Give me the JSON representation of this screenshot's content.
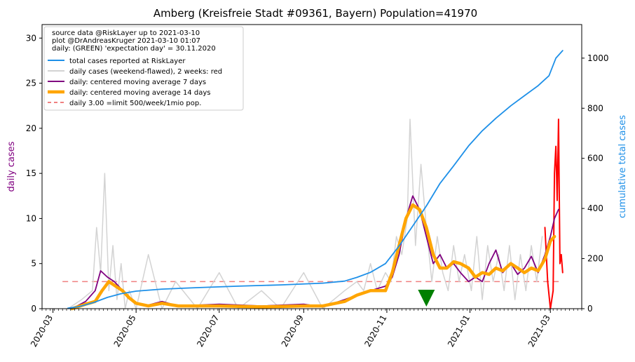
{
  "chart_data": {
    "type": "line",
    "title": "Amberg (Kreisfreie Stadt #09361, Bayern) Population=41970",
    "ylabel_left": "daily cases",
    "ylabel_right": "cumulative total cases",
    "xlim": [
      "2020-02-22",
      "2021-03-24"
    ],
    "ylim_left": [
      0,
      31.5
    ],
    "ylim_right": [
      0,
      1134
    ],
    "yticks_left": [
      0,
      5,
      10,
      15,
      20,
      25,
      30
    ],
    "yticks_right": [
      0,
      200,
      400,
      600,
      800,
      1000
    ],
    "xticks": [
      {
        "date": "2020-03-01",
        "label": "2020-03"
      },
      {
        "date": "2020-05-01",
        "label": "2020-05"
      },
      {
        "date": "2020-07-01",
        "label": "2020-07"
      },
      {
        "date": "2020-09-01",
        "label": "2020-09"
      },
      {
        "date": "2020-11-01",
        "label": "2020-11"
      },
      {
        "date": "2021-01-01",
        "label": "2021-01"
      },
      {
        "date": "2021-03-01",
        "label": "2021-03"
      }
    ],
    "colors": {
      "total": "#1e90e8",
      "daily": "#d3d3d3",
      "daily_recent": "#ff0000",
      "ma7": "#800080",
      "ma14": "#ffa500",
      "limit": "#f08080",
      "expectation_marker": "#008000",
      "left_label": "#800080",
      "right_label": "#1e90e8"
    },
    "legend": {
      "placement": "top-left",
      "header_lines": [
        "source data @RiskLayer up to 2021-03-10",
        "plot @DrAndreasKruger 2021-03-10 01:07",
        "daily: (GREEN) 'expectation day' = 30.11.2020"
      ],
      "entries": [
        {
          "key": "total",
          "label": "total cases reported at RiskLayer"
        },
        {
          "key": "daily",
          "label": "daily cases (weekend-flawed), 2 weeks: red"
        },
        {
          "key": "ma7",
          "label": "daily: centered moving average 7 days"
        },
        {
          "key": "ma14",
          "label": "daily: centered moving average 14 days"
        },
        {
          "key": "limit",
          "label": "daily 3.00 =limit 500/week/1mio pop."
        }
      ]
    },
    "limit_line": {
      "value": 3.0,
      "x_start": "2020-03-08",
      "x_end": "2021-03-10"
    },
    "expectation_day": "2020-11-30",
    "series": {
      "total": {
        "x": [
          "2020-03-12",
          "2020-03-20",
          "2020-03-31",
          "2020-04-10",
          "2020-04-20",
          "2020-05-01",
          "2020-05-20",
          "2020-06-15",
          "2020-07-15",
          "2020-08-15",
          "2020-09-15",
          "2020-10-01",
          "2020-10-10",
          "2020-10-20",
          "2020-10-31",
          "2020-11-10",
          "2020-11-20",
          "2020-11-30",
          "2020-12-10",
          "2020-12-20",
          "2020-12-31",
          "2021-01-10",
          "2021-01-20",
          "2021-01-31",
          "2021-02-10",
          "2021-02-20",
          "2021-02-28",
          "2021-03-05",
          "2021-03-10"
        ],
        "y": [
          2,
          8,
          25,
          45,
          60,
          70,
          78,
          84,
          90,
          95,
          102,
          110,
          125,
          145,
          180,
          250,
          330,
          410,
          500,
          570,
          650,
          710,
          760,
          810,
          850,
          890,
          930,
          1000,
          1030
        ]
      },
      "daily": {
        "x": [
          "2020-03-12",
          "2020-03-22",
          "2020-03-30",
          "2020-04-02",
          "2020-04-05",
          "2020-04-08",
          "2020-04-11",
          "2020-04-14",
          "2020-04-17",
          "2020-04-20",
          "2020-04-23",
          "2020-04-26",
          "2020-05-01",
          "2020-05-10",
          "2020-05-20",
          "2020-05-30",
          "2020-06-15",
          "2020-07-01",
          "2020-07-15",
          "2020-08-01",
          "2020-08-15",
          "2020-09-01",
          "2020-09-15",
          "2020-10-01",
          "2020-10-10",
          "2020-10-15",
          "2020-10-20",
          "2020-10-25",
          "2020-10-31",
          "2020-11-04",
          "2020-11-08",
          "2020-11-12",
          "2020-11-16",
          "2020-11-18",
          "2020-11-22",
          "2020-11-26",
          "2020-11-30",
          "2020-12-04",
          "2020-12-08",
          "2020-12-12",
          "2020-12-16",
          "2020-12-20",
          "2020-12-24",
          "2020-12-28",
          "2021-01-02",
          "2021-01-06",
          "2021-01-10",
          "2021-01-14",
          "2021-01-18",
          "2021-01-22",
          "2021-01-26",
          "2021-01-30",
          "2021-02-03",
          "2021-02-07",
          "2021-02-11",
          "2021-02-15",
          "2021-02-19",
          "2021-02-23"
        ],
        "y": [
          0,
          1,
          2,
          9,
          4,
          15,
          2,
          7,
          1,
          5,
          0,
          2,
          0,
          6,
          0,
          3,
          0,
          4,
          0,
          2,
          0,
          4,
          0,
          2,
          3,
          2,
          5,
          2,
          4,
          3,
          8,
          6,
          10,
          21,
          7,
          16,
          9,
          3,
          8,
          4,
          2,
          7,
          3,
          6,
          2,
          8,
          1,
          7,
          3,
          6,
          2,
          7,
          1,
          6,
          2,
          7,
          3,
          8
        ]
      },
      "daily_recent": {
        "x": [
          "2021-02-25",
          "2021-02-27",
          "2021-03-01",
          "2021-03-03",
          "2021-03-04",
          "2021-03-05",
          "2021-03-06",
          "2021-03-07",
          "2021-03-08",
          "2021-03-09",
          "2021-03-10"
        ],
        "y": [
          9,
          3,
          0,
          2,
          15,
          18,
          12,
          21,
          5,
          6,
          4
        ]
      },
      "ma7": {
        "x": [
          "2020-03-15",
          "2020-03-25",
          "2020-04-01",
          "2020-04-05",
          "2020-04-10",
          "2020-04-15",
          "2020-04-20",
          "2020-04-25",
          "2020-05-01",
          "2020-05-10",
          "2020-05-20",
          "2020-06-01",
          "2020-07-01",
          "2020-08-01",
          "2020-09-01",
          "2020-09-15",
          "2020-10-01",
          "2020-10-10",
          "2020-10-20",
          "2020-10-31",
          "2020-11-05",
          "2020-11-10",
          "2020-11-15",
          "2020-11-20",
          "2020-11-25",
          "2020-11-30",
          "2020-12-05",
          "2020-12-10",
          "2020-12-15",
          "2020-12-20",
          "2020-12-25",
          "2020-12-31",
          "2021-01-05",
          "2021-01-10",
          "2021-01-15",
          "2021-01-20",
          "2021-01-25",
          "2021-01-31",
          "2021-02-05",
          "2021-02-10",
          "2021-02-15",
          "2021-02-20",
          "2021-02-25",
          "2021-03-01",
          "2021-03-04",
          "2021-03-07"
        ],
        "y": [
          0,
          0.8,
          2,
          4.2,
          3.5,
          3,
          2.2,
          1.2,
          0.5,
          0.4,
          0.8,
          0.3,
          0.5,
          0.3,
          0.5,
          0.2,
          1,
          1.5,
          2,
          2.5,
          3.5,
          6,
          10,
          12.5,
          11,
          8,
          5,
          6,
          4.5,
          5,
          4,
          3,
          3.5,
          3,
          5,
          6.5,
          4,
          5,
          3.8,
          4.5,
          5.8,
          4,
          6,
          8,
          10,
          11
        ]
      },
      "ma14": {
        "x": [
          "2020-03-15",
          "2020-03-25",
          "2020-04-01",
          "2020-04-06",
          "2020-04-11",
          "2020-04-16",
          "2020-04-21",
          "2020-04-26",
          "2020-05-01",
          "2020-05-10",
          "2020-05-20",
          "2020-06-01",
          "2020-07-01",
          "2020-08-01",
          "2020-09-01",
          "2020-09-15",
          "2020-10-01",
          "2020-10-10",
          "2020-10-20",
          "2020-10-31",
          "2020-11-05",
          "2020-11-10",
          "2020-11-15",
          "2020-11-20",
          "2020-11-25",
          "2020-11-30",
          "2020-12-05",
          "2020-12-10",
          "2020-12-15",
          "2020-12-20",
          "2020-12-25",
          "2020-12-31",
          "2021-01-05",
          "2021-01-10",
          "2021-01-15",
          "2021-01-20",
          "2021-01-25",
          "2021-01-31",
          "2021-02-05",
          "2021-02-10",
          "2021-02-15",
          "2021-02-20",
          "2021-02-25",
          "2021-03-01",
          "2021-03-04"
        ],
        "y": [
          0,
          0.5,
          0.8,
          2,
          3,
          2.5,
          2,
          1.2,
          0.6,
          0.3,
          0.6,
          0.3,
          0.3,
          0.2,
          0.3,
          0.3,
          0.8,
          1.5,
          2,
          2,
          4,
          7,
          10,
          11.5,
          11,
          9,
          6,
          4.5,
          4.5,
          5.2,
          5,
          4.5,
          3.5,
          4,
          3.8,
          4.5,
          4.2,
          5,
          4.5,
          4,
          4.5,
          4.2,
          5.5,
          7.5,
          8
        ]
      }
    }
  }
}
